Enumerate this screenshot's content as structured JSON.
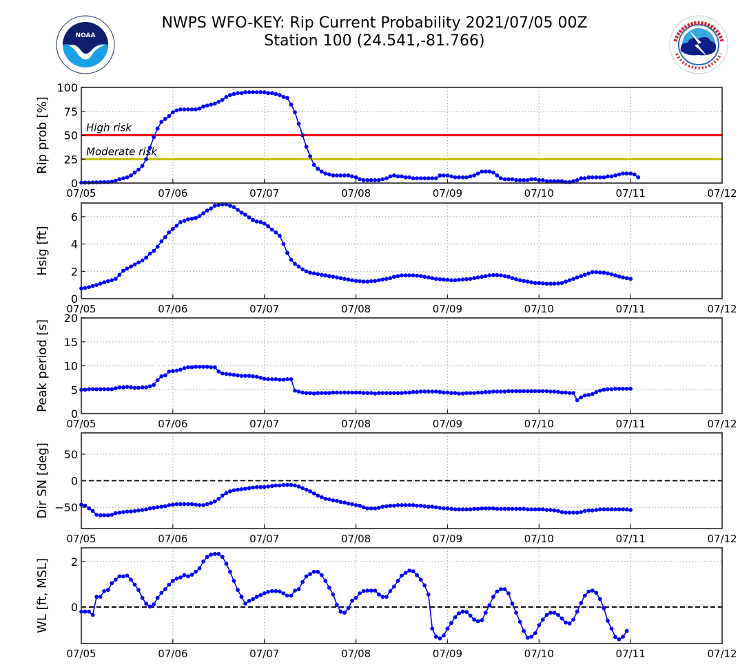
{
  "header": {
    "title_line1": "NWPS WFO-KEY: Rip Current Probability 2021/07/05 00Z",
    "title_line2": "Station 100 (24.541,-81.766)",
    "left_logo": "noaa-logo",
    "right_logo": "nws-logo"
  },
  "colors": {
    "series": "#0000ff",
    "high_risk": "#ff0000",
    "moderate_risk": "#bfbf00",
    "grid": "#b0b0b0",
    "zero_line": "#000000"
  },
  "chart_data": [
    {
      "type": "line",
      "id": "rip",
      "ylabel": "Rip prob [%]",
      "ylim": [
        0,
        100
      ],
      "yticks": [
        0,
        25,
        50,
        75,
        100
      ],
      "xlim_days": [
        0,
        7
      ],
      "xtick_labels": [
        "07/05",
        "07/06",
        "07/07",
        "07/08",
        "07/09",
        "07/10",
        "07/11",
        "07/12"
      ],
      "grid": true,
      "x_step_hours": 1,
      "reference_lines": [
        {
          "value": 50,
          "label": "High risk",
          "color": "#ff0000"
        },
        {
          "value": 25,
          "label": "Moderate risk",
          "color": "#bfbf00"
        }
      ],
      "values": [
        0.5,
        0.5,
        0.5,
        0.7,
        0.8,
        0.9,
        1,
        1,
        1.5,
        2.5,
        4,
        5,
        6,
        8,
        11,
        14,
        18,
        25,
        37,
        48,
        57,
        64,
        67,
        70,
        74,
        76,
        77,
        77,
        77,
        77,
        77,
        78,
        80,
        81,
        82,
        83,
        85,
        87,
        90,
        92,
        93,
        94,
        94,
        95,
        95,
        95,
        95,
        95,
        95,
        94,
        94,
        93,
        92,
        90,
        89,
        82,
        74,
        62,
        50,
        38,
        28,
        19,
        15,
        12,
        10,
        9,
        8,
        8,
        8,
        8,
        8,
        7,
        6,
        4,
        3,
        3,
        3,
        3,
        3,
        4,
        5,
        7,
        8,
        7,
        7,
        6,
        6,
        5,
        5,
        5,
        5,
        5,
        5,
        5,
        8,
        8,
        8,
        7,
        6,
        6,
        6,
        6,
        7,
        8,
        10,
        12,
        12,
        12,
        11,
        8,
        5,
        4,
        4,
        4,
        3,
        3,
        3,
        3,
        4,
        4,
        3,
        3,
        2,
        2,
        2,
        2,
        2,
        1,
        1,
        2,
        3,
        5,
        5,
        6,
        6,
        6,
        6,
        6,
        7,
        7,
        8,
        9,
        10,
        10,
        10,
        9,
        6
      ]
    },
    {
      "type": "line",
      "id": "hsig",
      "ylabel": "Hsig [ft]",
      "ylim": [
        0,
        7
      ],
      "yticks": [
        0,
        2,
        4,
        6
      ],
      "xlim_days": [
        0,
        7
      ],
      "xtick_labels": [
        "07/05",
        "07/06",
        "07/07",
        "07/08",
        "07/09",
        "07/10",
        "07/11",
        "07/12"
      ],
      "grid": true,
      "x_step_hours": 1,
      "values": [
        0.75,
        0.78,
        0.85,
        0.92,
        1.0,
        1.1,
        1.2,
        1.28,
        1.35,
        1.45,
        1.75,
        2.05,
        2.2,
        2.35,
        2.5,
        2.65,
        2.8,
        3.0,
        3.3,
        3.5,
        3.8,
        4.2,
        4.5,
        4.85,
        5.1,
        5.35,
        5.6,
        5.7,
        5.8,
        5.85,
        5.9,
        6.05,
        6.25,
        6.45,
        6.6,
        6.8,
        6.85,
        6.9,
        6.9,
        6.8,
        6.7,
        6.5,
        6.3,
        6.15,
        5.95,
        5.75,
        5.65,
        5.6,
        5.5,
        5.3,
        5.05,
        4.85,
        4.6,
        4.0,
        3.35,
        2.85,
        2.55,
        2.35,
        2.15,
        2.0,
        1.9,
        1.85,
        1.8,
        1.75,
        1.7,
        1.65,
        1.6,
        1.55,
        1.5,
        1.45,
        1.4,
        1.35,
        1.3,
        1.28,
        1.25,
        1.25,
        1.28,
        1.3,
        1.35,
        1.4,
        1.45,
        1.5,
        1.6,
        1.65,
        1.7,
        1.7,
        1.7,
        1.7,
        1.68,
        1.65,
        1.6,
        1.55,
        1.5,
        1.45,
        1.42,
        1.4,
        1.38,
        1.35,
        1.35,
        1.38,
        1.4,
        1.43,
        1.45,
        1.5,
        1.55,
        1.6,
        1.65,
        1.7,
        1.72,
        1.72,
        1.7,
        1.65,
        1.6,
        1.5,
        1.42,
        1.35,
        1.3,
        1.25,
        1.2,
        1.15,
        1.15,
        1.12,
        1.1,
        1.1,
        1.1,
        1.12,
        1.15,
        1.25,
        1.35,
        1.45,
        1.55,
        1.65,
        1.75,
        1.85,
        1.95,
        1.95,
        1.92,
        1.9,
        1.85,
        1.78,
        1.7,
        1.62,
        1.55,
        1.5,
        1.45
      ]
    },
    {
      "type": "line",
      "id": "tp",
      "ylabel": "Peak period [s]",
      "ylim": [
        0,
        20
      ],
      "yticks": [
        0,
        5,
        10,
        15,
        20
      ],
      "xlim_days": [
        0,
        7
      ],
      "xtick_labels": [
        "07/05",
        "07/06",
        "07/07",
        "07/08",
        "07/09",
        "07/10",
        "07/11",
        "07/12"
      ],
      "grid": true,
      "x_step_hours": 1,
      "values": [
        5.0,
        5.0,
        5.1,
        5.1,
        5.1,
        5.1,
        5.1,
        5.1,
        5.1,
        5.3,
        5.5,
        5.5,
        5.6,
        5.5,
        5.4,
        5.4,
        5.5,
        5.5,
        5.7,
        6.0,
        7.0,
        7.8,
        8.0,
        8.8,
        8.9,
        9.0,
        9.2,
        9.5,
        9.7,
        9.7,
        9.8,
        9.8,
        9.8,
        9.8,
        9.7,
        9.7,
        8.8,
        8.4,
        8.3,
        8.2,
        8.1,
        8.0,
        7.9,
        7.9,
        7.9,
        7.8,
        7.7,
        7.5,
        7.3,
        7.2,
        7.2,
        7.2,
        7.1,
        7.1,
        7.2,
        7.2,
        4.8,
        4.6,
        4.4,
        4.3,
        4.3,
        4.2,
        4.3,
        4.3,
        4.3,
        4.3,
        4.4,
        4.4,
        4.4,
        4.4,
        4.4,
        4.4,
        4.4,
        4.4,
        4.3,
        4.3,
        4.3,
        4.2,
        4.3,
        4.3,
        4.3,
        4.3,
        4.3,
        4.3,
        4.3,
        4.4,
        4.4,
        4.5,
        4.5,
        4.6,
        4.6,
        4.6,
        4.6,
        4.6,
        4.5,
        4.4,
        4.4,
        4.3,
        4.3,
        4.2,
        4.2,
        4.3,
        4.3,
        4.3,
        4.4,
        4.4,
        4.5,
        4.5,
        4.6,
        4.6,
        4.6,
        4.6,
        4.7,
        4.7,
        4.7,
        4.7,
        4.7,
        4.7,
        4.7,
        4.7,
        4.7,
        4.7,
        4.7,
        4.6,
        4.6,
        4.5,
        4.4,
        4.4,
        4.3,
        4.3,
        2.8,
        3.4,
        3.8,
        3.9,
        4.1,
        4.5,
        4.8,
        5.0,
        5.1,
        5.1,
        5.2,
        5.2,
        5.2,
        5.2,
        5.2
      ]
    },
    {
      "type": "line",
      "id": "dir",
      "ylabel": "Dir SN [deg]",
      "ylim": [
        -90,
        90
      ],
      "yticks": [
        -50,
        0,
        50
      ],
      "xlim_days": [
        0,
        7
      ],
      "xtick_labels": [
        "07/05",
        "07/06",
        "07/07",
        "07/08",
        "07/09",
        "07/10",
        "07/11",
        "07/12"
      ],
      "grid": true,
      "x_step_hours": 1,
      "zero_line": true,
      "values": [
        -45,
        -47,
        -52,
        -57,
        -64,
        -65,
        -65,
        -65,
        -64,
        -61,
        -60,
        -59,
        -58,
        -58,
        -57,
        -56,
        -55,
        -54,
        -52,
        -51,
        -50,
        -49,
        -48,
        -46,
        -45,
        -44,
        -44,
        -44,
        -44,
        -44,
        -45,
        -46,
        -46,
        -44,
        -42,
        -39,
        -34,
        -28,
        -23,
        -20,
        -18,
        -17,
        -16,
        -15,
        -14,
        -13,
        -12,
        -12,
        -12,
        -11,
        -10,
        -9,
        -9,
        -8,
        -8,
        -8,
        -9,
        -11,
        -14,
        -17,
        -20,
        -24,
        -28,
        -31,
        -34,
        -35,
        -37,
        -38,
        -40,
        -41,
        -43,
        -44,
        -46,
        -47,
        -50,
        -52,
        -52,
        -52,
        -51,
        -49,
        -48,
        -47,
        -47,
        -46,
        -46,
        -46,
        -46,
        -46,
        -47,
        -47,
        -48,
        -49,
        -49,
        -50,
        -51,
        -52,
        -52,
        -53,
        -54,
        -54,
        -54,
        -54,
        -54,
        -53,
        -53,
        -52,
        -52,
        -52,
        -52,
        -53,
        -53,
        -53,
        -53,
        -53,
        -53,
        -53,
        -53,
        -54,
        -54,
        -54,
        -54,
        -54,
        -55,
        -55,
        -56,
        -57,
        -59,
        -60,
        -60,
        -60,
        -60,
        -59,
        -57,
        -56,
        -56,
        -55,
        -54,
        -54,
        -54,
        -54,
        -54,
        -54,
        -54,
        -54,
        -55
      ]
    },
    {
      "type": "line",
      "id": "wl",
      "ylabel": "WL [ft, MSL]",
      "ylim": [
        -1.6,
        2.6
      ],
      "yticks": [
        0,
        2
      ],
      "xlim_days": [
        0,
        7
      ],
      "xtick_labels": [
        "07/05",
        "07/06",
        "07/07",
        "07/08",
        "07/09",
        "07/10",
        "07/11",
        "07/12"
      ],
      "grid": true,
      "x_step_hours": 1,
      "zero_line": true,
      "values": [
        -0.2,
        -0.2,
        -0.2,
        -0.35,
        0.45,
        0.45,
        0.7,
        0.75,
        1.05,
        1.2,
        1.35,
        1.35,
        1.38,
        1.2,
        0.98,
        0.75,
        0.4,
        0.15,
        0.02,
        0.12,
        0.4,
        0.62,
        0.78,
        0.98,
        1.15,
        1.25,
        1.3,
        1.4,
        1.35,
        1.42,
        1.55,
        1.7,
        2.0,
        2.2,
        2.3,
        2.33,
        2.33,
        2.2,
        1.9,
        1.55,
        1.15,
        0.75,
        0.45,
        0.15,
        0.27,
        0.35,
        0.45,
        0.52,
        0.6,
        0.67,
        0.7,
        0.7,
        0.68,
        0.6,
        0.5,
        0.5,
        0.72,
        0.78,
        1.1,
        1.35,
        1.45,
        1.55,
        1.55,
        1.4,
        1.15,
        0.85,
        0.55,
        0.1,
        -0.2,
        -0.25,
        -0.05,
        0.28,
        0.4,
        0.6,
        0.7,
        0.72,
        0.72,
        0.72,
        0.55,
        0.45,
        0.45,
        0.7,
        0.9,
        1.15,
        1.38,
        1.5,
        1.6,
        1.57,
        1.4,
        1.2,
        0.95,
        0.55,
        -0.95,
        -1.3,
        -1.38,
        -1.25,
        -0.95,
        -0.7,
        -0.45,
        -0.28,
        -0.2,
        -0.22,
        -0.38,
        -0.55,
        -0.62,
        -0.58,
        -0.25,
        0.08,
        0.45,
        0.68,
        0.78,
        0.78,
        0.6,
        0.15,
        -0.25,
        -0.65,
        -1.05,
        -1.35,
        -1.3,
        -1.15,
        -0.8,
        -0.55,
        -0.35,
        -0.25,
        -0.25,
        -0.35,
        -0.5,
        -0.68,
        -0.72,
        -0.55,
        -0.2,
        0.18,
        0.5,
        0.68,
        0.72,
        0.62,
        0.35,
        -0.05,
        -0.6,
        -0.95,
        -1.32,
        -1.42,
        -1.3,
        -1.05
      ]
    }
  ]
}
